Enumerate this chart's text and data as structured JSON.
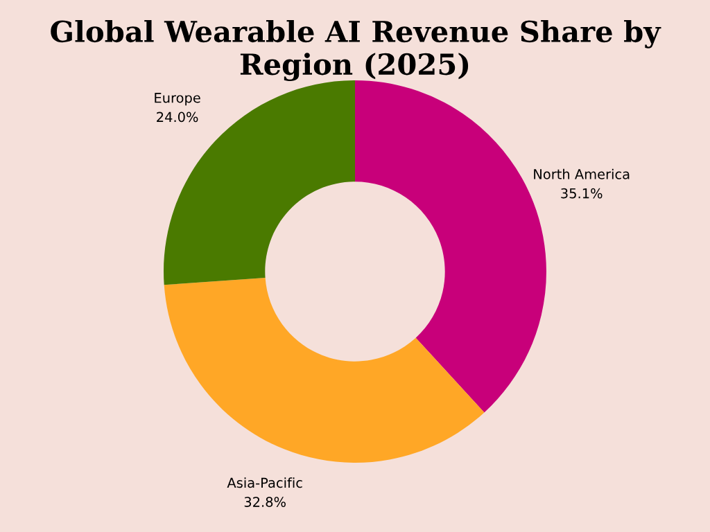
{
  "chart_data": {
    "type": "donut",
    "title": "Global Wearable AI Revenue Share by Region (2025)",
    "categories": [
      "North America",
      "Asia-Pacific",
      "Europe"
    ],
    "values": [
      35.1,
      32.8,
      24.0
    ],
    "value_labels": [
      "35.1%",
      "32.8%",
      "24.0%"
    ],
    "colors": [
      "#c8007a",
      "#ffa726",
      "#4a7a00"
    ],
    "legend": false
  }
}
